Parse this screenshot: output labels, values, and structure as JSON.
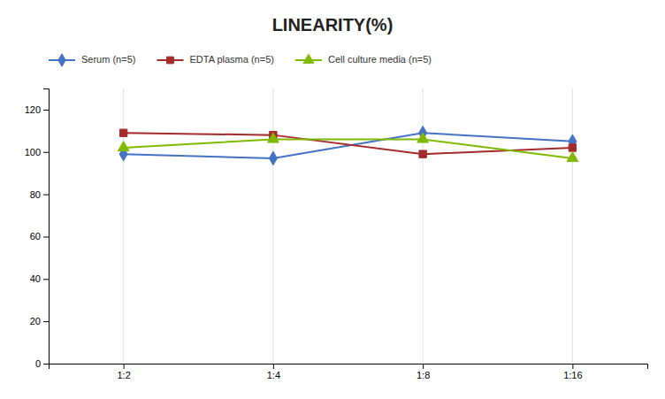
{
  "chart_data": {
    "type": "line",
    "title": "LINEARITY(%)",
    "categories": [
      "1:2",
      "1:4",
      "1:8",
      "1:16"
    ],
    "series": [
      {
        "name": "Serum (n=5)",
        "color": "#4472C4",
        "marker": "diamond",
        "values": [
          99,
          97,
          109,
          105
        ]
      },
      {
        "name": "EDTA plasma (n=5)",
        "color": "#A52A2A",
        "marker": "square",
        "values": [
          109,
          108,
          99,
          102
        ]
      },
      {
        "name": "Cell culture media (n=5)",
        "color": "#7FBA00",
        "marker": "triangle",
        "values": [
          102,
          106,
          106,
          97
        ]
      }
    ],
    "ylim": [
      0,
      130
    ],
    "yticks": [
      0,
      20,
      40,
      60,
      80,
      100,
      120
    ],
    "grid": "x",
    "legend": "top"
  }
}
